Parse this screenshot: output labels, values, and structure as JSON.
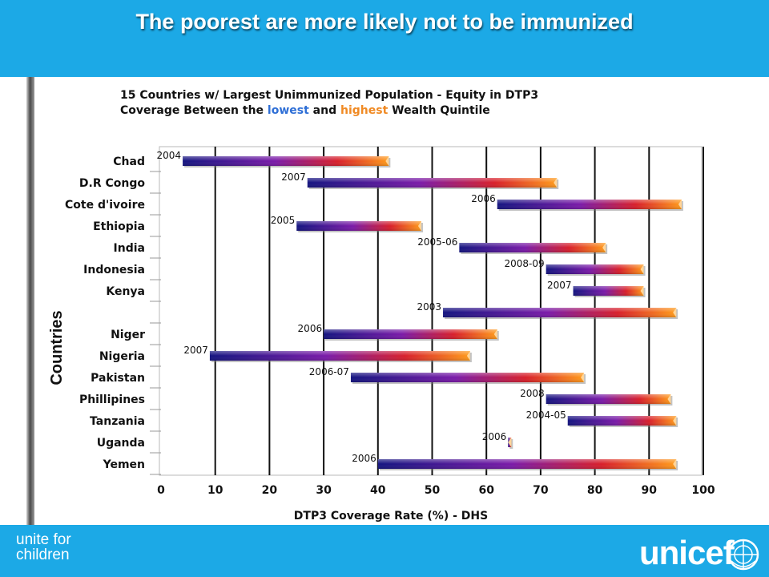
{
  "slide": {
    "title": "The poorest are more likely not to be immunized",
    "tagline": "unite for\nchildren",
    "logo_text": "unicef",
    "colors": {
      "band": "#1ca9e6",
      "low": "#1a1a8c",
      "high": "#ff8c1a"
    }
  },
  "chart_data": {
    "type": "bar",
    "title_parts": [
      {
        "text": "15 Countries w/ Largest Unimmunized Population - Equity in DTP3",
        "color": "#111111"
      },
      {
        "text": "Coverage Between the ",
        "color": "#111111"
      },
      {
        "text": "lowest",
        "color": "#2f6fd6"
      },
      {
        "text": " and ",
        "color": "#111111"
      },
      {
        "text": "highest",
        "color": "#f08a24"
      },
      {
        "text": " Wealth Quintile",
        "color": "#111111"
      }
    ],
    "xlabel": "DTP3 Coverage Rate (%) - DHS",
    "ylabel": "Countries",
    "xlim": [
      0,
      100
    ],
    "xticks": [
      0,
      10,
      20,
      30,
      40,
      50,
      60,
      70,
      80,
      90,
      100
    ],
    "categories": [
      "Chad",
      "D.R Congo",
      "Cote d'ivoire",
      "Ethiopia",
      "India",
      "Indonesia",
      "Kenya",
      "",
      "Niger",
      "Nigeria",
      "Pakistan",
      "Phillipines",
      "Tanzania",
      "Uganda",
      "Yemen"
    ],
    "survey_years": [
      "2004",
      "2007",
      "2006",
      "2005",
      "2005-06",
      "2008-09",
      "2007",
      "2003",
      "2006",
      "2007",
      "2006-07",
      "2008",
      "2004-05",
      "2006",
      "2006"
    ],
    "lowest_quintile": [
      4,
      27,
      62,
      25,
      55,
      71,
      76,
      52,
      30,
      9,
      35,
      71,
      75,
      64,
      40
    ],
    "highest_quintile": [
      42,
      73,
      96,
      48,
      82,
      89,
      89,
      95,
      62,
      57,
      78,
      94,
      95,
      64.5,
      95
    ],
    "grid": true
  }
}
